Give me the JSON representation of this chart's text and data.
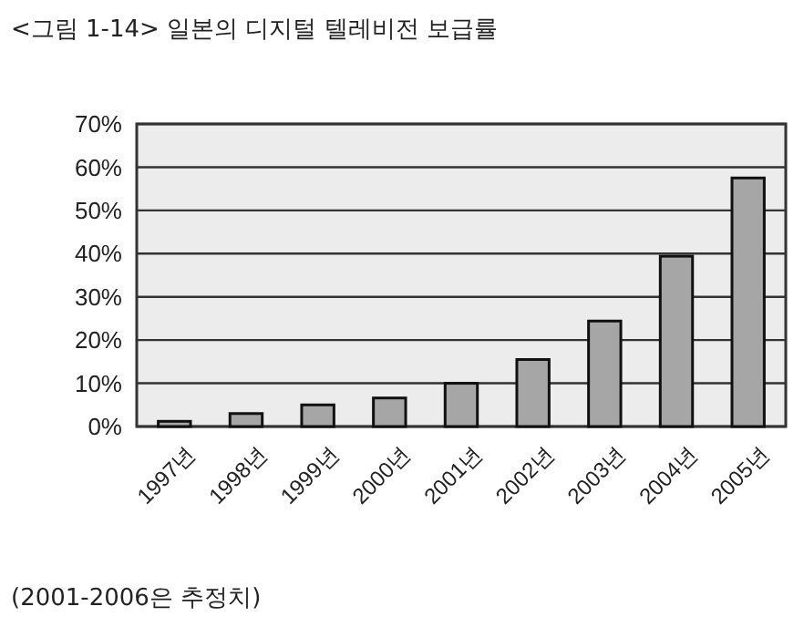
{
  "chart_data": {
    "type": "bar",
    "title": "<그림 1-14> 일본의 디지털 텔레비전 보급률",
    "categories": [
      "1997년",
      "1998년",
      "1999년",
      "2000년",
      "2001년",
      "2002년",
      "2003년",
      "2004년",
      "2005년"
    ],
    "values": [
      1.2,
      3,
      5,
      6.6,
      10,
      15.5,
      24.4,
      39.4,
      57.5
    ],
    "color": "#a6a6a6",
    "ylim": [
      0,
      70
    ],
    "yticks": [
      {
        "value": 0,
        "label": "0%"
      },
      {
        "value": 10,
        "label": "10%"
      },
      {
        "value": 20,
        "label": "20%"
      },
      {
        "value": 30,
        "label": "30%"
      },
      {
        "value": 40,
        "label": "40%"
      },
      {
        "value": 50,
        "label": "50%"
      },
      {
        "value": 60,
        "label": "60%"
      },
      {
        "value": 70,
        "label": "70%"
      }
    ],
    "grid": "y",
    "annotations": [
      "(2001-2006은 추정치)"
    ]
  }
}
